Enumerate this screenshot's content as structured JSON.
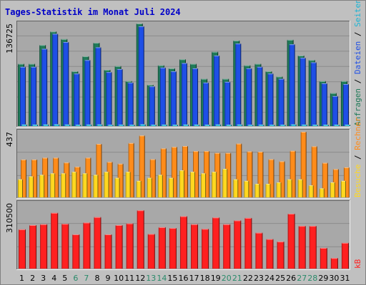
{
  "title": "Tages-Statistik im Monat Juli 2024",
  "colors": {
    "title": "#0000c8",
    "anfragen": "#1f7a58",
    "dateien": "#1e4fe6",
    "seiten": "#1ab4d4",
    "besuche": "#ffd820",
    "rechner": "#ff8c1a",
    "kb": "#ff2020",
    "weekend_label": "#2a8a6a",
    "weekday_label": "#000000",
    "panel_bg": "#a8a8a8"
  },
  "legend": {
    "top": [
      {
        "text": "Anfragen",
        "color_key": "anfragen"
      },
      {
        "text": " / ",
        "color_key": "weekday_label"
      },
      {
        "text": "Dateien",
        "color_key": "dateien"
      },
      {
        "text": " / ",
        "color_key": "weekday_label"
      },
      {
        "text": "Seiten",
        "color_key": "seiten"
      }
    ],
    "middle": [
      {
        "text": "Besuche",
        "color_key": "besuche"
      },
      {
        "text": " / ",
        "color_key": "weekday_label"
      },
      {
        "text": "Rechner",
        "color_key": "rechner"
      }
    ],
    "bottom": [
      {
        "text": "kB",
        "color_key": "kb"
      }
    ]
  },
  "chart_data": [
    {
      "type": "bar",
      "panel": "hits",
      "ymax_label": "136725",
      "ylim": [
        0,
        136725
      ],
      "x": [
        "1",
        "2",
        "3",
        "4",
        "5",
        "6",
        "7",
        "8",
        "9",
        "10",
        "11",
        "12",
        "13",
        "14",
        "15",
        "16",
        "17",
        "18",
        "19",
        "20",
        "21",
        "22",
        "23",
        "24",
        "25",
        "26",
        "27",
        "28",
        "29",
        "30",
        "31"
      ],
      "weekend": [
        6,
        7,
        13,
        14,
        20,
        21,
        27,
        28
      ],
      "series": [
        {
          "name": "Anfragen",
          "values": [
            83000,
            83000,
            108000,
            126000,
            116000,
            73000,
            93000,
            111000,
            75000,
            80000,
            60000,
            136725,
            55000,
            81000,
            77000,
            89000,
            83000,
            63000,
            99000,
            63000,
            114000,
            81000,
            83000,
            73000,
            66000,
            115000,
            94000,
            88000,
            60000,
            44000,
            60000
          ]
        },
        {
          "name": "Dateien",
          "values": [
            79000,
            79000,
            103000,
            123000,
            112000,
            70000,
            88000,
            105000,
            72000,
            76000,
            58000,
            133000,
            53000,
            78000,
            73000,
            84000,
            77000,
            58000,
            94000,
            59000,
            110000,
            77000,
            79000,
            70000,
            63000,
            109000,
            91000,
            85000,
            57000,
            40000,
            56000
          ]
        },
        {
          "name": "Seiten",
          "values": [
            2100,
            2000,
            2200,
            2400,
            2100,
            1800,
            2100,
            2300,
            1900,
            2000,
            1700,
            2400,
            1600,
            2000,
            1900,
            2100,
            2000,
            1700,
            2200,
            1700,
            2200,
            1900,
            2000,
            1800,
            1700,
            2300,
            2000,
            1900,
            1600,
            1200,
            1500
          ]
        }
      ]
    },
    {
      "type": "bar",
      "panel": "visits",
      "ymax_label": "437",
      "ylim": [
        0,
        437
      ],
      "series": [
        {
          "name": "Rechner",
          "values": [
            252,
            252,
            264,
            264,
            232,
            204,
            264,
            356,
            236,
            224,
            362,
            412,
            254,
            326,
            336,
            342,
            308,
            308,
            296,
            296,
            358,
            306,
            304,
            254,
            240,
            310,
            437,
            340,
            230,
            188,
            200
          ]
        },
        {
          "name": "Besuche",
          "values": [
            120,
            140,
            150,
            160,
            160,
            170,
            160,
            150,
            170,
            130,
            170,
            110,
            130,
            150,
            130,
            180,
            170,
            160,
            170,
            190,
            120,
            110,
            90,
            90,
            100,
            120,
            120,
            80,
            60,
            100,
            110
          ]
        }
      ]
    },
    {
      "type": "bar",
      "panel": "kb",
      "ymax_label": "310500",
      "ylim": [
        0,
        310500
      ],
      "series": [
        {
          "name": "kB",
          "values": [
            186000,
            206000,
            210000,
            264000,
            212000,
            162000,
            218000,
            244000,
            162000,
            206000,
            214000,
            276000,
            164000,
            196000,
            192000,
            248000,
            210000,
            188000,
            242000,
            210000,
            228000,
            240000,
            170000,
            140000,
            128000,
            260000,
            202000,
            202000,
            98000,
            50000,
            122000
          ]
        }
      ]
    }
  ]
}
